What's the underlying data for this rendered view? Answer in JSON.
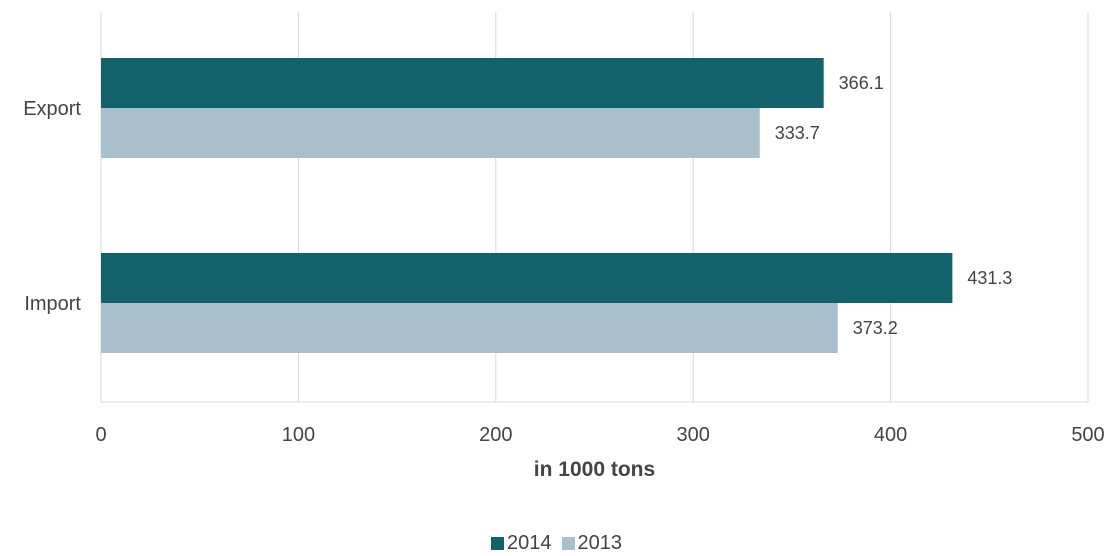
{
  "chart_data": {
    "type": "bar",
    "orientation": "horizontal",
    "categories": [
      "Export",
      "Import"
    ],
    "series": [
      {
        "name": "2014",
        "values": [
          366.1,
          431.3
        ],
        "color": "#13616a"
      },
      {
        "name": "2013",
        "values": [
          333.7,
          373.2
        ],
        "color": "#a9bfcb"
      }
    ],
    "xlabel": "in 1000 tons",
    "xlim": [
      0,
      500
    ],
    "xticks": [
      0,
      100,
      200,
      300,
      400,
      500
    ],
    "data_labels": [
      "366.1",
      "333.7",
      "431.3",
      "373.2"
    ],
    "grid": "vertical",
    "legend_position": "bottom"
  }
}
